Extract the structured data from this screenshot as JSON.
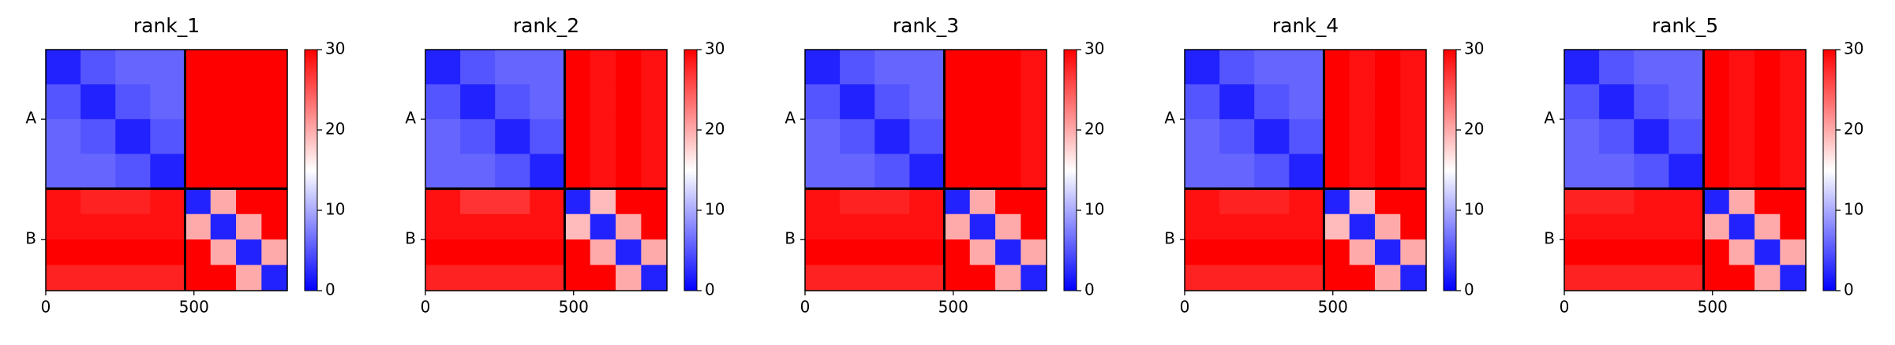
{
  "chart_data": [
    {
      "type": "heatmap",
      "title": "rank_1",
      "categories": [
        "A",
        "B"
      ],
      "chain_breaks": [
        470
      ],
      "xlim": [
        0,
        815
      ],
      "xticks": [
        0,
        500
      ],
      "edges": [
        0,
        117.5,
        235,
        352.5,
        470,
        556,
        642,
        728,
        815
      ],
      "clim": [
        0,
        30
      ],
      "cticks": [
        0,
        10,
        20,
        30
      ],
      "cmap": [
        "#0000ff",
        "#ffffff",
        "#ff0000"
      ],
      "z": [
        [
          2,
          5,
          6,
          6,
          30,
          30,
          30,
          30
        ],
        [
          5,
          2,
          5,
          6,
          30,
          30,
          30,
          30
        ],
        [
          6,
          5,
          2,
          5,
          30,
          30,
          30,
          30
        ],
        [
          6,
          6,
          5,
          2,
          30,
          30,
          30,
          30
        ],
        [
          29,
          28,
          28,
          29,
          2,
          20,
          30,
          30
        ],
        [
          29,
          29,
          29,
          29,
          20,
          2,
          20,
          30
        ],
        [
          30,
          30,
          30,
          30,
          30,
          20,
          2,
          20
        ],
        [
          28,
          28,
          28,
          28,
          30,
          30,
          20,
          2
        ]
      ]
    },
    {
      "type": "heatmap",
      "title": "rank_2",
      "categories": [
        "A",
        "B"
      ],
      "chain_breaks": [
        470
      ],
      "xlim": [
        0,
        815
      ],
      "xticks": [
        0,
        500
      ],
      "edges": [
        0,
        117.5,
        235,
        352.5,
        470,
        556,
        642,
        728,
        815
      ],
      "clim": [
        0,
        30
      ],
      "cticks": [
        0,
        10,
        20,
        30
      ],
      "cmap": [
        "#0000ff",
        "#ffffff",
        "#ff0000"
      ],
      "z": [
        [
          2,
          5,
          6,
          6,
          30,
          29,
          30,
          29
        ],
        [
          5,
          2,
          5,
          6,
          30,
          29,
          30,
          29
        ],
        [
          6,
          5,
          2,
          5,
          30,
          29,
          30,
          29
        ],
        [
          6,
          6,
          5,
          2,
          30,
          29,
          30,
          29
        ],
        [
          29,
          27,
          27,
          29,
          2,
          19,
          30,
          30
        ],
        [
          29,
          29,
          29,
          29,
          19,
          2,
          20,
          30
        ],
        [
          30,
          30,
          30,
          30,
          30,
          20,
          2,
          20
        ],
        [
          28,
          28,
          28,
          28,
          30,
          30,
          20,
          2
        ]
      ]
    },
    {
      "type": "heatmap",
      "title": "rank_3",
      "categories": [
        "A",
        "B"
      ],
      "chain_breaks": [
        470
      ],
      "xlim": [
        0,
        815
      ],
      "xticks": [
        0,
        500
      ],
      "edges": [
        0,
        117.5,
        235,
        352.5,
        470,
        556,
        642,
        728,
        815
      ],
      "clim": [
        0,
        30
      ],
      "cticks": [
        0,
        10,
        20,
        30
      ],
      "cmap": [
        "#0000ff",
        "#ffffff",
        "#ff0000"
      ],
      "z": [
        [
          2,
          5,
          6,
          6,
          30,
          30,
          30,
          29
        ],
        [
          5,
          2,
          5,
          6,
          30,
          30,
          30,
          29
        ],
        [
          6,
          5,
          2,
          5,
          30,
          30,
          30,
          29
        ],
        [
          6,
          6,
          5,
          2,
          30,
          30,
          30,
          29
        ],
        [
          29,
          28,
          28,
          29,
          2,
          20,
          30,
          30
        ],
        [
          29,
          29,
          29,
          29,
          20,
          2,
          20,
          30
        ],
        [
          30,
          30,
          30,
          30,
          30,
          20,
          2,
          20
        ],
        [
          28,
          28,
          28,
          28,
          30,
          30,
          20,
          2
        ]
      ]
    },
    {
      "type": "heatmap",
      "title": "rank_4",
      "categories": [
        "A",
        "B"
      ],
      "chain_breaks": [
        470
      ],
      "xlim": [
        0,
        815
      ],
      "xticks": [
        0,
        500
      ],
      "edges": [
        0,
        117.5,
        235,
        352.5,
        470,
        556,
        642,
        728,
        815
      ],
      "clim": [
        0,
        30
      ],
      "cticks": [
        0,
        10,
        20,
        30
      ],
      "cmap": [
        "#0000ff",
        "#ffffff",
        "#ff0000"
      ],
      "z": [
        [
          2,
          5,
          6,
          6,
          30,
          29,
          30,
          29
        ],
        [
          5,
          2,
          5,
          6,
          30,
          29,
          30,
          29
        ],
        [
          6,
          5,
          2,
          5,
          30,
          29,
          30,
          29
        ],
        [
          6,
          6,
          5,
          2,
          30,
          29,
          30,
          29
        ],
        [
          29,
          28,
          28,
          29,
          2,
          19,
          30,
          30
        ],
        [
          29,
          29,
          29,
          29,
          19,
          2,
          20,
          30
        ],
        [
          30,
          30,
          30,
          30,
          30,
          20,
          2,
          20
        ],
        [
          28,
          28,
          28,
          28,
          30,
          30,
          20,
          2
        ]
      ]
    },
    {
      "type": "heatmap",
      "title": "rank_5",
      "categories": [
        "A",
        "B"
      ],
      "chain_breaks": [
        470
      ],
      "xlim": [
        0,
        815
      ],
      "xticks": [
        0,
        500
      ],
      "edges": [
        0,
        117.5,
        235,
        352.5,
        470,
        556,
        642,
        728,
        815
      ],
      "clim": [
        0,
        30
      ],
      "cticks": [
        0,
        10,
        20,
        30
      ],
      "cmap": [
        "#0000ff",
        "#ffffff",
        "#ff0000"
      ],
      "z": [
        [
          2,
          5,
          6,
          6,
          30,
          29,
          30,
          29
        ],
        [
          5,
          2,
          5,
          6,
          30,
          29,
          30,
          29
        ],
        [
          6,
          5,
          2,
          5,
          30,
          29,
          30,
          29
        ],
        [
          6,
          6,
          5,
          2,
          30,
          29,
          30,
          29
        ],
        [
          28,
          28,
          29,
          29,
          2,
          20,
          30,
          30
        ],
        [
          29,
          29,
          29,
          29,
          20,
          2,
          20,
          30
        ],
        [
          30,
          30,
          30,
          30,
          30,
          20,
          2,
          20
        ],
        [
          28,
          28,
          28,
          28,
          30,
          30,
          20,
          2
        ]
      ]
    }
  ]
}
